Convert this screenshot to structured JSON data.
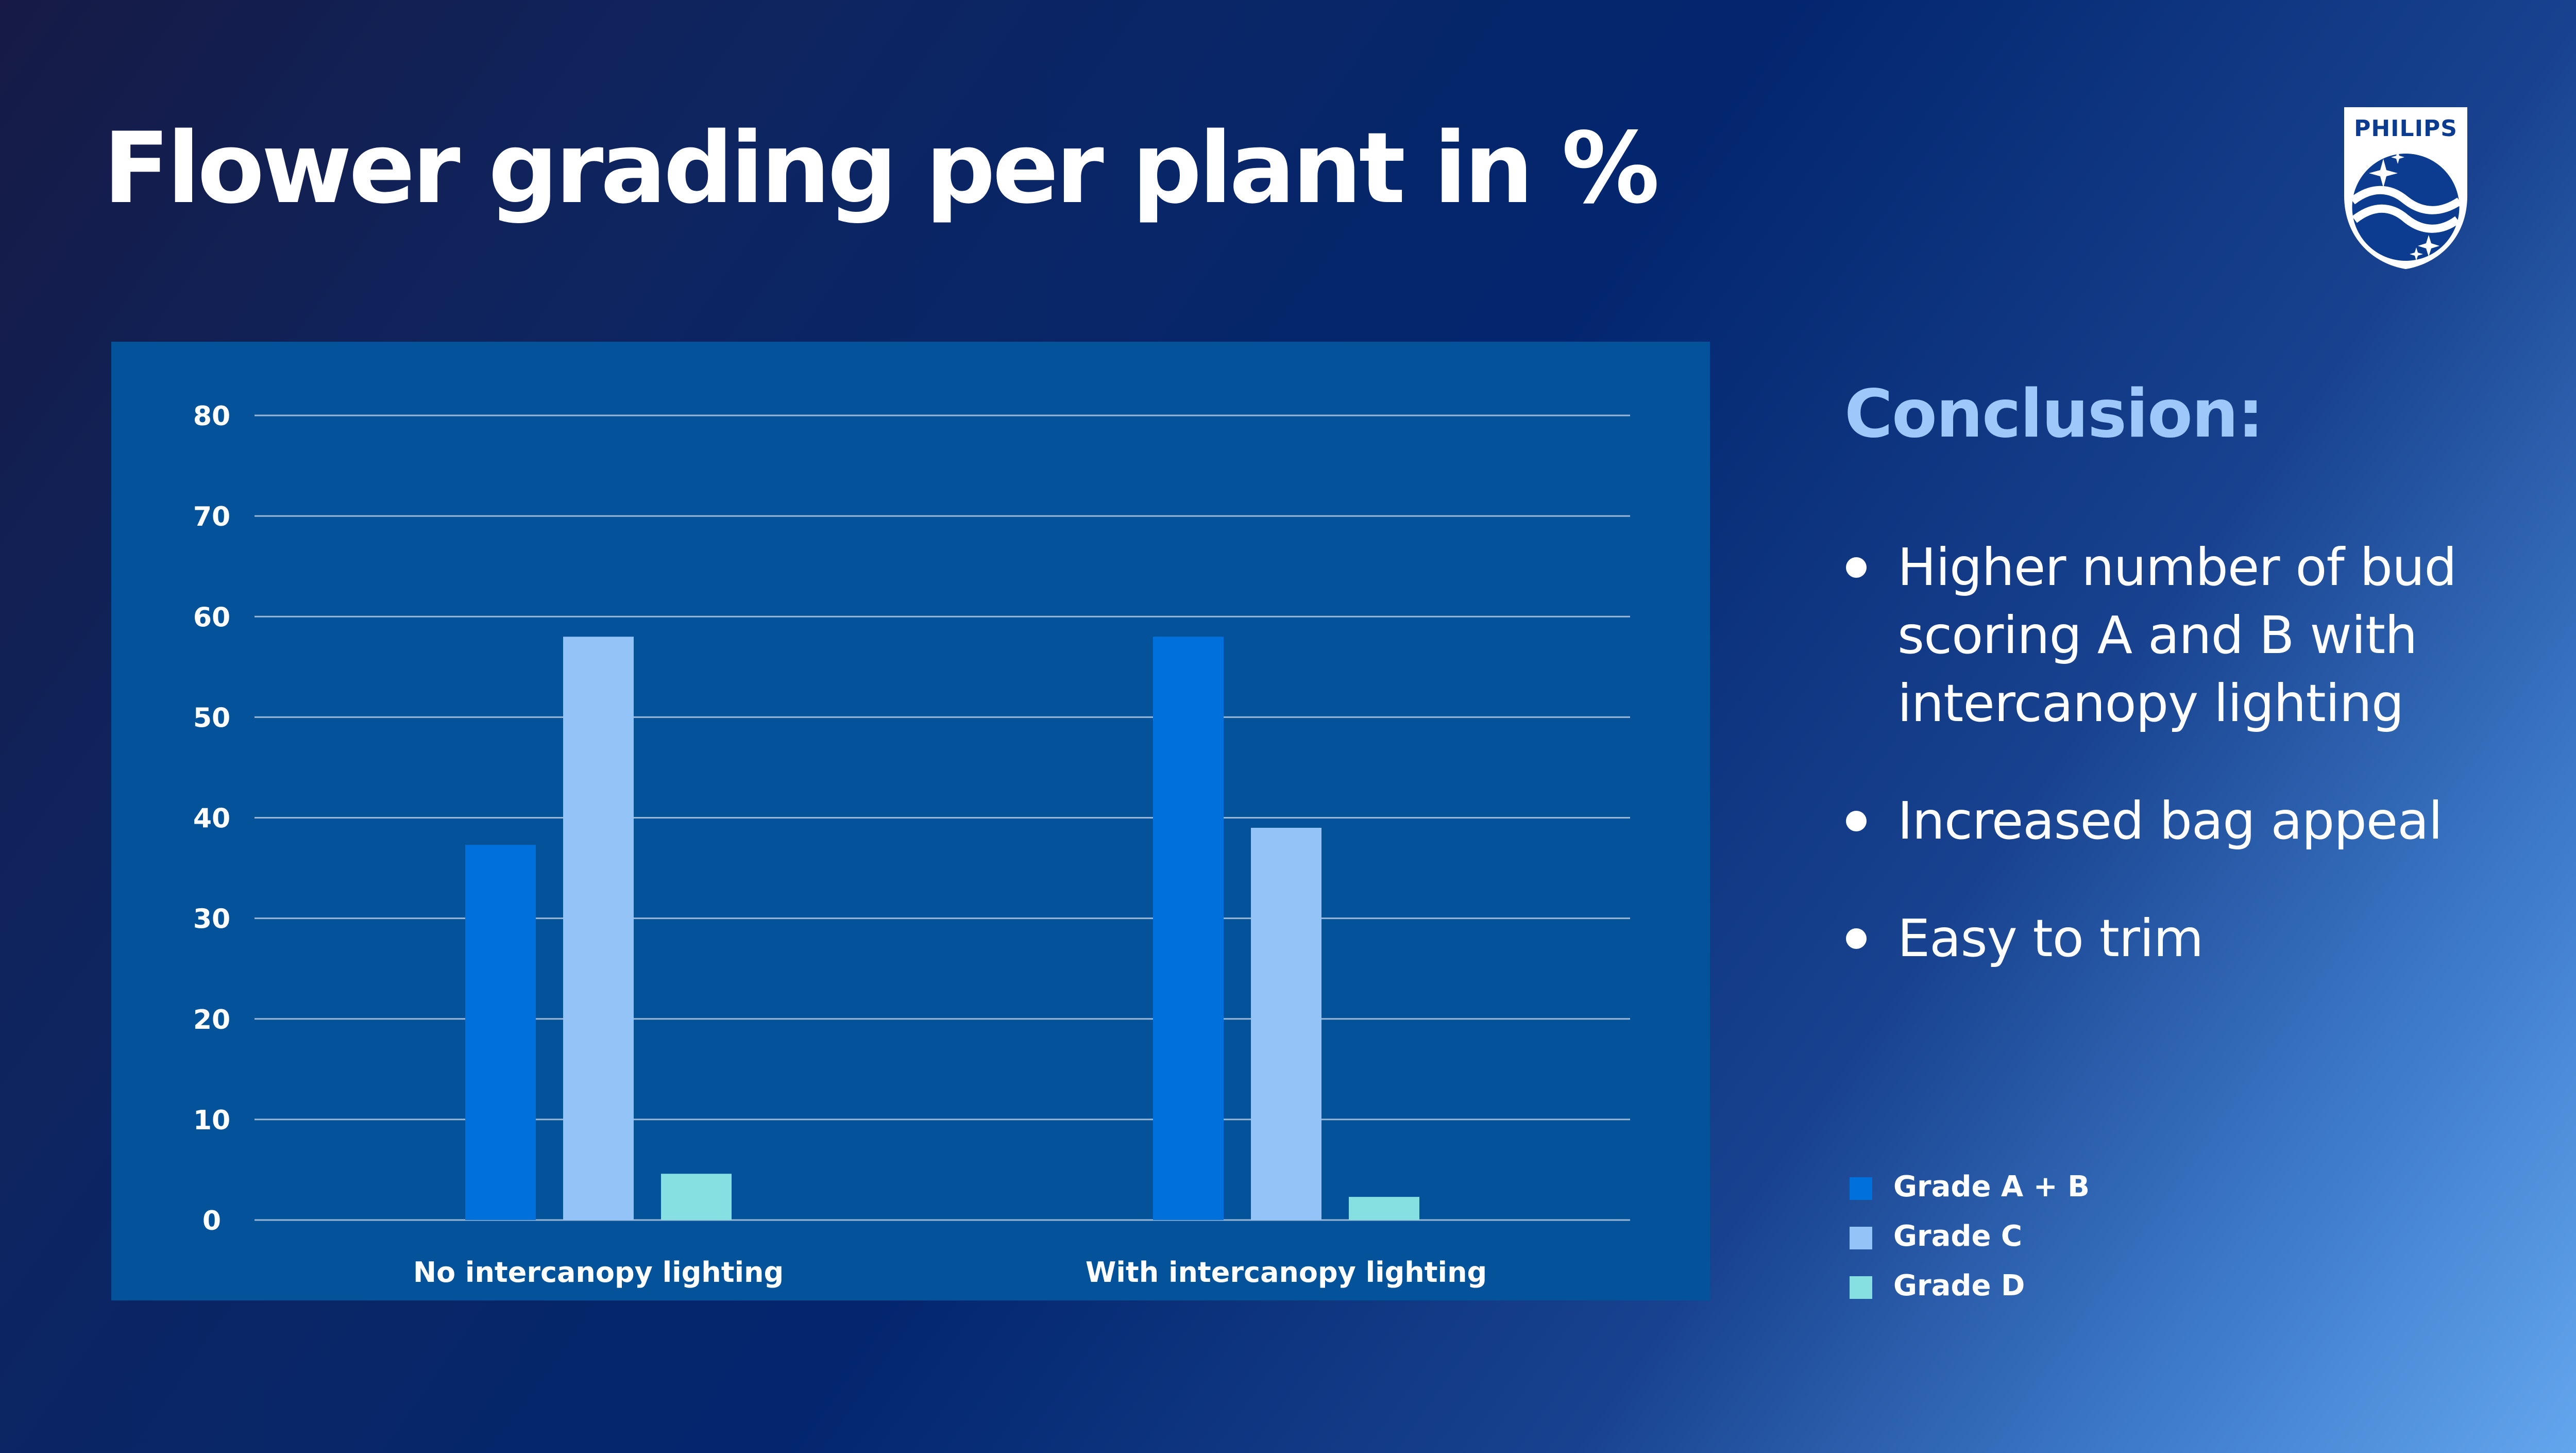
{
  "slide": {
    "title": "Flower grading per plant in %",
    "brand": "PHILIPS"
  },
  "conclusion": {
    "heading": "Conclusion:",
    "bullets": [
      "Higher number of bud scoring A and B with intercanopy lighting",
      "Increased bag appeal",
      "Easy to trim"
    ]
  },
  "colors": {
    "panel": "#04539a",
    "grid": "#9ab7d6",
    "heading_accent": "#9ec8fa",
    "grade_ab": "#0070dd",
    "grade_c": "#94c3f7",
    "grade_d": "#86dfe0"
  },
  "chart_data": {
    "type": "bar",
    "categories": [
      "No intercanopy lighting",
      "With intercanopy lighting"
    ],
    "series": [
      {
        "name": "Grade A + B",
        "values": [
          37.3,
          58
        ],
        "color": "#0070dd"
      },
      {
        "name": "Grade C",
        "values": [
          58,
          39
        ],
        "color": "#94c3f7"
      },
      {
        "name": "Grade D",
        "values": [
          4.6,
          2.3
        ],
        "color": "#86dfe0"
      }
    ],
    "ylim": [
      0,
      80
    ],
    "yticks": [
      0,
      10,
      20,
      30,
      40,
      50,
      60,
      70,
      80
    ],
    "grid": true,
    "legend": "right"
  }
}
